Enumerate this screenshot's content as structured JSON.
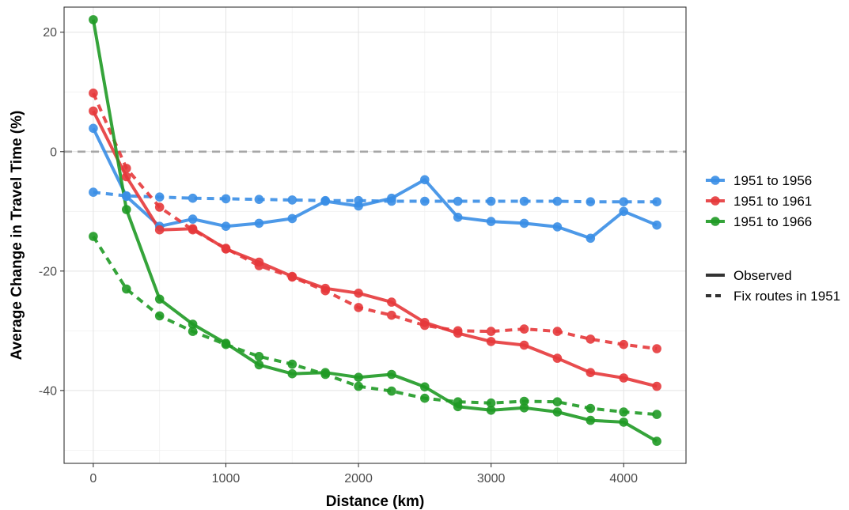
{
  "chart_data": {
    "type": "line",
    "xlabel": "Distance (km)",
    "ylabel": "Average Change in Travel Time (%)",
    "xlim": [
      -220,
      4470
    ],
    "ylim": [
      -52.2,
      24.2
    ],
    "xticks": [
      0,
      1000,
      2000,
      3000,
      4000
    ],
    "yticks": [
      20,
      0,
      -20,
      -40
    ],
    "grid": true,
    "reference_line": {
      "y": 0,
      "style": "dashed",
      "color": "#a6a6a6"
    },
    "legend_position": "right",
    "x": [
      0,
      250,
      500,
      750,
      1000,
      1250,
      1500,
      1750,
      2000,
      2250,
      2500,
      2750,
      3000,
      3250,
      3500,
      3750,
      4000,
      4250
    ],
    "series": [
      {
        "name": "1951 to 1956",
        "color": "#3a8ee6",
        "linetype": "Observed",
        "values": [
          3.9,
          -7.5,
          -12.5,
          -11.3,
          -12.5,
          -12.0,
          -11.2,
          -8.3,
          -9.1,
          -7.8,
          -4.7,
          -11.0,
          -11.7,
          -12.0,
          -12.6,
          -14.5,
          -10.0,
          -12.3
        ]
      },
      {
        "name": "1951 to 1956",
        "color": "#3a8ee6",
        "linetype": "Fix routes in 1951",
        "values": [
          -6.8,
          -7.4,
          -7.6,
          -7.8,
          -7.9,
          -8.0,
          -8.1,
          -8.2,
          -8.2,
          -8.3,
          -8.3,
          -8.3,
          -8.3,
          -8.3,
          -8.3,
          -8.4,
          -8.4,
          -8.4
        ]
      },
      {
        "name": "1951 to 1961",
        "color": "#e5383b",
        "linetype": "Observed",
        "values": [
          6.8,
          -4.2,
          -13.1,
          -12.9,
          -16.3,
          -18.5,
          -20.9,
          -22.9,
          -23.7,
          -25.2,
          -28.6,
          -30.4,
          -31.8,
          -32.4,
          -34.6,
          -37.0,
          -37.9,
          -39.3
        ]
      },
      {
        "name": "1951 to 1961",
        "color": "#e5383b",
        "linetype": "Fix routes in 1951",
        "values": [
          9.8,
          -2.8,
          -9.3,
          -13.1,
          -16.2,
          -19.1,
          -21.0,
          -23.3,
          -26.1,
          -27.4,
          -29.1,
          -30.0,
          -30.1,
          -29.7,
          -30.1,
          -31.4,
          -32.3,
          -33.0
        ]
      },
      {
        "name": "1951 to 1966",
        "color": "#1f9a25",
        "linetype": "Observed",
        "values": [
          22.1,
          -9.7,
          -24.7,
          -28.9,
          -32.1,
          -35.7,
          -37.2,
          -37.0,
          -37.8,
          -37.3,
          -39.4,
          -42.7,
          -43.3,
          -42.9,
          -43.6,
          -45.0,
          -45.3,
          -48.5
        ]
      },
      {
        "name": "1951 to 1966",
        "color": "#1f9a25",
        "linetype": "Fix routes in 1951",
        "values": [
          -14.2,
          -23.0,
          -27.5,
          -30.1,
          -32.3,
          -34.3,
          -35.6,
          -37.3,
          -39.3,
          -40.1,
          -41.3,
          -41.9,
          -42.1,
          -41.8,
          -41.9,
          -43.0,
          -43.6,
          -44.0
        ]
      }
    ],
    "legend": {
      "colors": [
        {
          "label": "1951 to 1956",
          "color": "#3a8ee6"
        },
        {
          "label": "1951 to 1961",
          "color": "#e5383b"
        },
        {
          "label": "1951 to 1966",
          "color": "#1f9a25"
        }
      ],
      "linetypes": [
        {
          "label": "Observed",
          "style": "solid"
        },
        {
          "label": "Fix routes in 1951",
          "style": "dashed"
        }
      ]
    }
  }
}
